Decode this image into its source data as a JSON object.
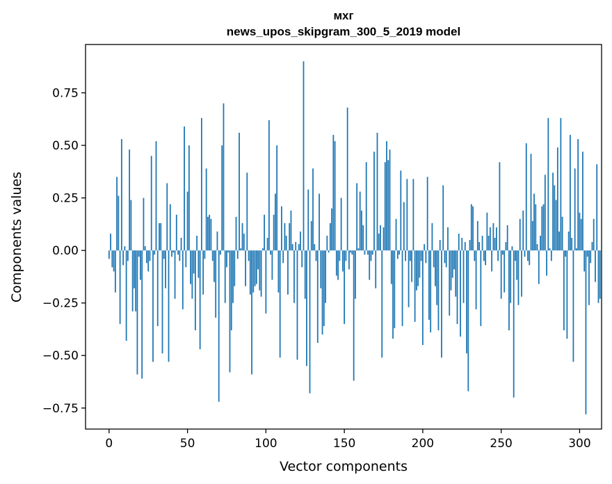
{
  "chart_data": {
    "type": "bar",
    "title": "мхг",
    "subtitle": "news_upos_skipgram_300_5_2019 model",
    "xlabel": "Vector components",
    "ylabel": "Components values",
    "xlim": [
      -15,
      314
    ],
    "ylim": [
      -0.85,
      0.98
    ],
    "xticks": [
      0,
      50,
      100,
      150,
      200,
      250,
      300
    ],
    "yticks": [
      -0.75,
      -0.5,
      -0.25,
      0.0,
      0.25,
      0.5,
      0.75
    ],
    "ytick_labels": [
      "−0.75",
      "−0.50",
      "−0.25",
      "0.00",
      "0.25",
      "0.50",
      "0.75"
    ],
    "bar_color": "#1f77b4",
    "values": [
      -0.04,
      0.08,
      -0.08,
      -0.1,
      -0.2,
      0.35,
      0.26,
      -0.35,
      0.53,
      -0.07,
      0.02,
      -0.43,
      -0.05,
      0.48,
      0.24,
      -0.29,
      -0.18,
      -0.29,
      -0.59,
      -0.03,
      -0.14,
      -0.61,
      0.25,
      0.02,
      -0.06,
      -0.1,
      -0.05,
      0.45,
      -0.53,
      -0.02,
      0.52,
      -0.36,
      0.13,
      0.13,
      -0.49,
      -0.04,
      -0.18,
      0.32,
      -0.53,
      0.22,
      -0.03,
      -0.01,
      -0.23,
      0.17,
      -0.02,
      -0.05,
      0.06,
      -0.28,
      0.59,
      -0.08,
      0.28,
      0.5,
      -0.16,
      -0.23,
      -0.11,
      -0.38,
      0.07,
      -0.13,
      -0.47,
      0.63,
      -0.21,
      -0.04,
      0.39,
      0.16,
      0.17,
      0.15,
      -0.05,
      -0.15,
      -0.32,
      0.09,
      -0.72,
      -0.02,
      0.5,
      0.7,
      -0.25,
      -0.08,
      -0.01,
      -0.58,
      -0.38,
      -0.25,
      -0.17,
      0.16,
      -0.04,
      0.56,
      0.01,
      0.13,
      0.08,
      -0.17,
      0.37,
      -0.05,
      -0.21,
      -0.59,
      -0.2,
      -0.17,
      -0.16,
      -0.09,
      -0.19,
      -0.22,
      0.01,
      0.17,
      -0.3,
      0.06,
      0.62,
      -0.02,
      -0.14,
      0.17,
      0.27,
      0.5,
      -0.2,
      -0.51,
      0.21,
      -0.06,
      0.13,
      0.07,
      -0.21,
      0.13,
      0.19,
      0.03,
      -0.25,
      0.04,
      -0.52,
      0.03,
      0.09,
      -0.08,
      0.9,
      -0.23,
      -0.55,
      0.29,
      -0.68,
      0.14,
      0.39,
      0.03,
      -0.05,
      -0.44,
      0.27,
      -0.18,
      -0.4,
      -0.36,
      -0.25,
      0.07,
      -0.01,
      0.13,
      0.2,
      0.55,
      0.52,
      -0.12,
      -0.14,
      -0.05,
      0.25,
      -0.1,
      -0.35,
      -0.05,
      0.68,
      -0.09,
      -0.01,
      -0.02,
      -0.62,
      -0.23,
      0.32,
      0.01,
      0.28,
      0.19,
      0.12,
      -0.02,
      0.42,
      -0.02,
      -0.14,
      -0.05,
      -0.02,
      0.47,
      -0.18,
      0.56,
      0.08,
      0.12,
      -0.51,
      0.11,
      0.42,
      0.52,
      0.43,
      0.48,
      -0.16,
      -0.42,
      -0.37,
      0.15,
      -0.04,
      -0.02,
      0.38,
      -0.36,
      0.23,
      -0.05,
      0.34,
      -0.27,
      -0.05,
      -0.15,
      0.34,
      -0.34,
      -0.19,
      -0.17,
      -0.13,
      -0.05,
      -0.45,
      0.03,
      -0.06,
      0.35,
      -0.33,
      -0.39,
      0.13,
      -0.08,
      -0.17,
      -0.26,
      -0.38,
      0.05,
      -0.51,
      0.31,
      -0.06,
      -0.08,
      0.11,
      -0.31,
      -0.19,
      -0.13,
      -0.09,
      -0.22,
      -0.35,
      0.08,
      -0.41,
      0.06,
      -0.25,
      0.04,
      -0.49,
      -0.67,
      0.05,
      0.22,
      0.21,
      -0.05,
      -0.28,
      0.14,
      0.04,
      -0.36,
      0.07,
      -0.05,
      -0.07,
      0.18,
      0.07,
      0.11,
      -0.1,
      0.13,
      0.06,
      0.11,
      -0.05,
      0.42,
      -0.23,
      -0.02,
      -0.2,
      0.04,
      0.12,
      -0.38,
      -0.25,
      0.02,
      -0.7,
      -0.05,
      -0.14,
      -0.26,
      0.15,
      -0.22,
      0.19,
      -0.03,
      0.51,
      -0.05,
      -0.07,
      0.46,
      0.14,
      0.27,
      0.22,
      0.03,
      -0.16,
      0.07,
      0.21,
      0.22,
      0.36,
      -0.12,
      0.63,
      0.01,
      -0.05,
      0.37,
      0.31,
      0.24,
      0.49,
      0.09,
      0.63,
      0.16,
      -0.38,
      -0.03,
      -0.42,
      0.09,
      0.55,
      0.06,
      -0.53,
      0.39,
      0.01,
      0.53,
      0.18,
      0.15,
      0.47,
      -0.1,
      -0.78,
      -0.03,
      -0.26,
      -0.06,
      0.04,
      0.15,
      -0.15,
      0.41,
      -0.25,
      -0.23
    ]
  }
}
